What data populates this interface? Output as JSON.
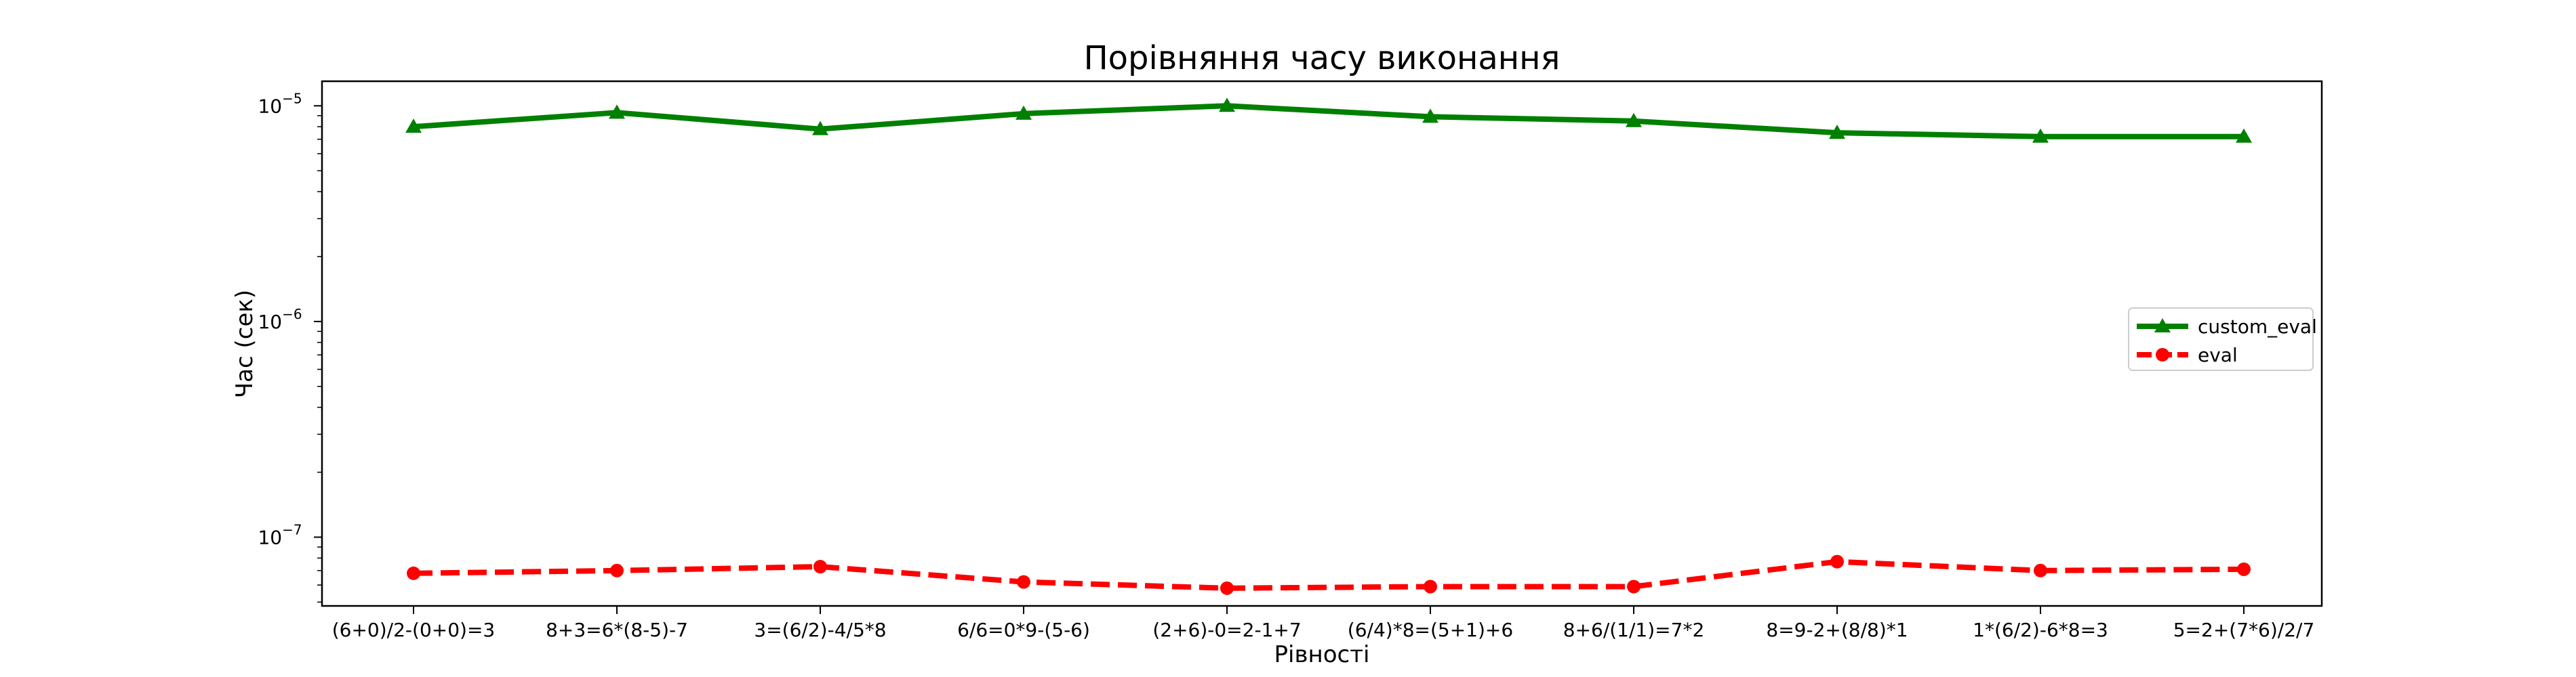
{
  "chart_data": {
    "type": "line",
    "title": "Порівняння часу виконання",
    "xlabel": "Рівності",
    "ylabel": "Час (сек)",
    "yscale": "log",
    "ylim": [
      4.8e-08,
      1.3e-05
    ],
    "yticks": [
      {
        "value": 1e-05,
        "base": "10",
        "exp": "−5"
      },
      {
        "value": 1e-06,
        "base": "10",
        "exp": "−6"
      },
      {
        "value": 1e-07,
        "base": "10",
        "exp": "−7"
      }
    ],
    "grid": false,
    "legend_position": "center-right",
    "categories": [
      "(6+0)/2-(0+0)=3",
      "8+3=6*(8-5)-7",
      "3=(6/2)-4/5*8",
      "6/6=0*9-(5-6)",
      "(2+6)-0=2-1+7",
      "(6/4)*8=(5+1)+6",
      "8+6/(1/1)=7*2",
      "8=9-2+(8/8)*1",
      "1*(6/2)-6*8=3",
      "5=2+(7*6)/2/7"
    ],
    "series": [
      {
        "name": "custom_eval",
        "color": "#008000",
        "marker": "triangle",
        "linestyle": "solid",
        "values": [
          8e-06,
          9.3e-06,
          7.8e-06,
          9.2e-06,
          1e-05,
          8.9e-06,
          8.5e-06,
          7.5e-06,
          7.2e-06,
          7.2e-06
        ]
      },
      {
        "name": "eval",
        "color": "#ff0000",
        "marker": "circle",
        "linestyle": "dashed",
        "values": [
          6.8e-08,
          7e-08,
          7.3e-08,
          6.2e-08,
          5.8e-08,
          5.9e-08,
          5.9e-08,
          7.7e-08,
          7e-08,
          7.1e-08
        ]
      }
    ]
  }
}
